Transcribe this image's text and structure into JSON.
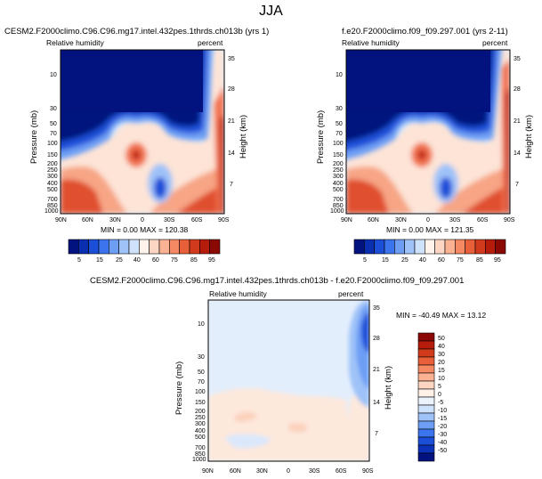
{
  "page": {
    "title": "JJA"
  },
  "colors": {
    "rh_levels": [
      "#08306b",
      "#0a2fa0",
      "#1747d0",
      "#2e6be6",
      "#5a92f2",
      "#8bb4f7",
      "#bcd6fb",
      "#e4f1fe",
      "#fde9df",
      "#fcc6ad",
      "#f9a07e",
      "#f27552",
      "#e04a2c",
      "#c42b14",
      "#9e1207",
      "#6b0202"
    ],
    "rh_bar": [
      "#02127e",
      "#0a2fb0",
      "#1c4fd8",
      "#3b74ec",
      "#6d9ef4",
      "#9fc2f8",
      "#cfe2fc",
      "#fff3ec",
      "#fcd5c3",
      "#fab293",
      "#f48963",
      "#e8603a",
      "#d23a1c",
      "#b51c0b",
      "#8a0904"
    ],
    "diff_bar": [
      "#02127e",
      "#0b32b8",
      "#1c4fd8",
      "#3b74ec",
      "#6d9ef4",
      "#9fc2f8",
      "#cfe2fc",
      "#eaf2fc",
      "#fff1e7",
      "#fcd5c3",
      "#fab293",
      "#f48963",
      "#e8603a",
      "#d23a1c",
      "#b51c0b",
      "#8a0904"
    ]
  },
  "chart_data": [
    {
      "type": "heatmap",
      "title": "CESM2.F2000climo.C96.C96.mg17.intel.432pes.1thrds.ch013b (yrs 1)",
      "left_label": "Relative humidity",
      "right_label": "percent",
      "ylabel": "Pressure (mb)",
      "y2label": "Height (km)",
      "x_ticks": [
        "90N",
        "60N",
        "30N",
        "0",
        "30S",
        "60S",
        "90S"
      ],
      "y_ticks": [
        "10",
        "30",
        "50",
        "70",
        "100",
        "150",
        "200",
        "250",
        "300",
        "400",
        "500",
        "700",
        "850",
        "1000"
      ],
      "y2_ticks": [
        "35",
        "28",
        "21",
        "14",
        "7"
      ],
      "min_max": "MIN =   0.00  MAX = 120.38",
      "colorbar_labels": [
        "5",
        "15",
        "25",
        "40",
        "60",
        "75",
        "85",
        "95"
      ]
    },
    {
      "type": "heatmap",
      "title": "f.e20.F2000climo.f09_f09.297.001 (yrs 2-11)",
      "left_label": "Relative humidity",
      "right_label": "percent",
      "ylabel": "Pressure (mb)",
      "y2label": "Height (km)",
      "x_ticks": [
        "90N",
        "60N",
        "30N",
        "0",
        "30S",
        "60S",
        "90S"
      ],
      "y_ticks": [
        "10",
        "30",
        "50",
        "70",
        "100",
        "150",
        "200",
        "250",
        "300",
        "400",
        "500",
        "700",
        "850",
        "1000"
      ],
      "y2_ticks": [
        "35",
        "28",
        "21",
        "14",
        "7"
      ],
      "min_max": "MIN =   0.00  MAX = 121.35",
      "colorbar_labels": [
        "5",
        "15",
        "25",
        "40",
        "60",
        "75",
        "85",
        "95"
      ]
    },
    {
      "type": "heatmap",
      "title": "CESM2.F2000climo.C96.C96.mg17.intel.432pes.1thrds.ch013b - f.e20.F2000climo.f09_f09.297.001",
      "left_label": "Relative humidity",
      "right_label": "percent",
      "ylabel": "Pressure (mb)",
      "y2label": "Height (km)",
      "x_ticks": [
        "90N",
        "60N",
        "30N",
        "0",
        "30S",
        "60S",
        "90S"
      ],
      "y_ticks": [
        "10",
        "30",
        "50",
        "70",
        "100",
        "150",
        "200",
        "250",
        "300",
        "400",
        "500",
        "700",
        "850",
        "1000"
      ],
      "y2_ticks": [
        "35",
        "28",
        "21",
        "14",
        "7"
      ],
      "min_max": "MIN = -40.49  MAX =  13.12",
      "colorbar_labels": [
        "50",
        "40",
        "30",
        "20",
        "15",
        "10",
        "5",
        "0",
        "-5",
        "-10",
        "-15",
        "-20",
        "-30",
        "-40",
        "-50"
      ]
    }
  ]
}
